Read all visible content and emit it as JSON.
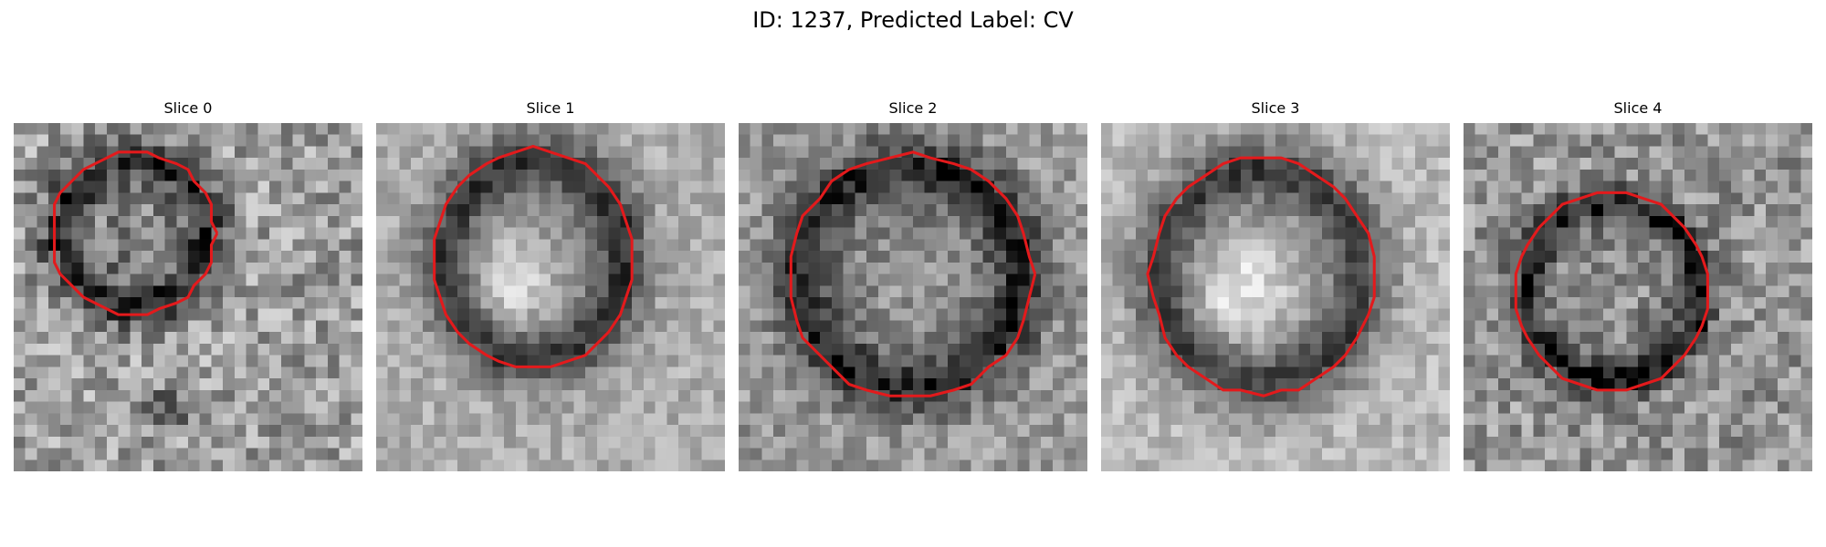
{
  "figure": {
    "title": "ID: 1237, Predicted Label: CV"
  },
  "contour_color": "#e31a1c",
  "panels": [
    {
      "title": "Slice 0"
    },
    {
      "title": "Slice 1"
    },
    {
      "title": "Slice 2"
    },
    {
      "title": "Slice 3"
    },
    {
      "title": "Slice 4"
    }
  ]
}
